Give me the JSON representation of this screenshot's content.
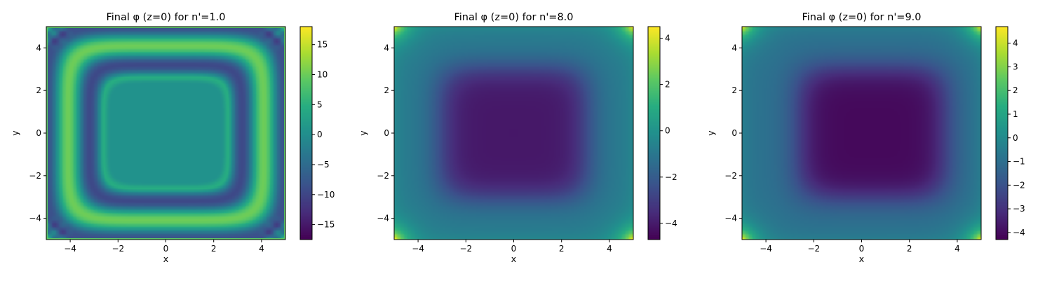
{
  "chart_data": [
    {
      "type": "heatmap",
      "title": "Final φ (z=0) for n'=1.0",
      "xlabel": "x",
      "ylabel": "y",
      "xlim": [
        -5,
        5
      ],
      "ylim": [
        -5,
        5
      ],
      "xticks": [
        -4,
        -2,
        0,
        2,
        4
      ],
      "xtick_labels": [
        "−4",
        "−2",
        "0",
        "2",
        "4"
      ],
      "yticks": [
        -4,
        -2,
        0,
        2,
        4
      ],
      "ytick_labels": [
        "−4",
        "−2",
        "0",
        "2",
        "4"
      ],
      "colorbar": {
        "range": [
          -17.5,
          18
        ],
        "ticks": [
          -15,
          -10,
          -5,
          0,
          5,
          10,
          15
        ],
        "tick_labels": [
          "−15",
          "−10",
          "−5",
          "0",
          "5",
          "10",
          "15"
        ],
        "colormap": "viridis"
      },
      "field_description": "concentric rounded-square rings; flat ~0 interior, bright ring (~11) at |x|,|y|≈3, alternating rings toward boundary, interference at corners",
      "grid": false
    },
    {
      "type": "heatmap",
      "title": "Final φ (z=0) for n'=8.0",
      "xlabel": "x",
      "ylabel": "y",
      "xlim": [
        -5,
        5
      ],
      "ylim": [
        -5,
        5
      ],
      "xticks": [
        -4,
        -2,
        0,
        2,
        4
      ],
      "xtick_labels": [
        "−4",
        "−2",
        "0",
        "2",
        "4"
      ],
      "yticks": [
        -4,
        -2,
        0,
        2,
        4
      ],
      "ytick_labels": [
        "−4",
        "−2",
        "0",
        "2",
        "4"
      ],
      "colorbar": {
        "range": [
          -4.7,
          4.5
        ],
        "ticks": [
          -4,
          -2,
          0,
          2,
          4
        ],
        "tick_labels": [
          "−4",
          "−2",
          "0",
          "2",
          "4"
        ],
        "colormap": "viridis"
      },
      "field_description": "dark rounded-square plateau (~-4) in the center, rising to ~-1 near edges, bright spots (~4) at the four corners",
      "grid": false
    },
    {
      "type": "heatmap",
      "title": "Final φ (z=0) for n'=9.0",
      "xlabel": "x",
      "ylabel": "y",
      "xlim": [
        -5,
        5
      ],
      "ylim": [
        -5,
        5
      ],
      "xticks": [
        -4,
        -2,
        0,
        2,
        4
      ],
      "xtick_labels": [
        "−4",
        "−2",
        "0",
        "2",
        "4"
      ],
      "yticks": [
        -4,
        -2,
        0,
        2,
        4
      ],
      "ytick_labels": [
        "−4",
        "−2",
        "0",
        "2",
        "4"
      ],
      "colorbar": {
        "range": [
          -4.3,
          4.7
        ],
        "ticks": [
          -4,
          -3,
          -2,
          -1,
          0,
          1,
          2,
          3,
          4
        ],
        "tick_labels": [
          "−4",
          "−3",
          "−2",
          "−1",
          "0",
          "1",
          "2",
          "3",
          "4"
        ],
        "colormap": "viridis"
      },
      "field_description": "smooth dark central basin (~-4) shifted slightly right, rising to ~-1 near edges, bright spots (~4) at the four corners",
      "grid": false
    }
  ]
}
